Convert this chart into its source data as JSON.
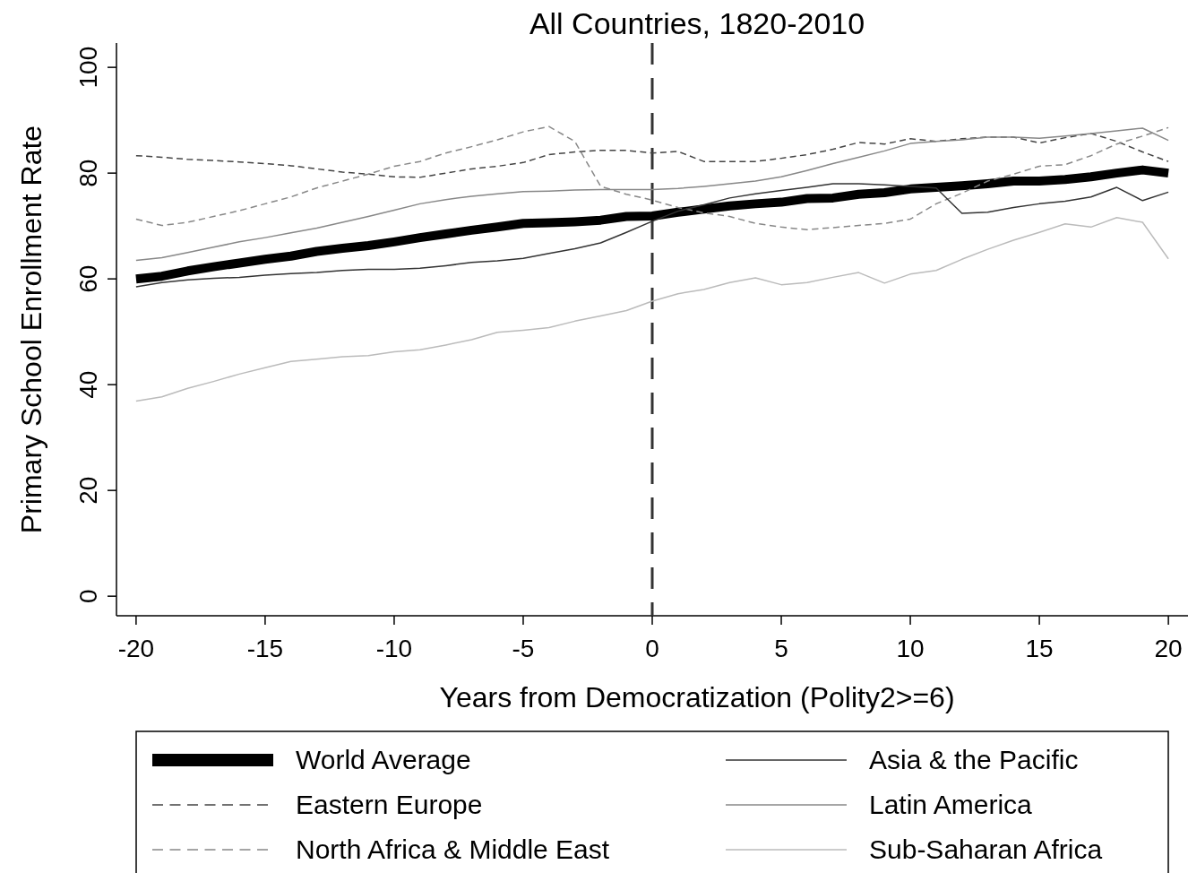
{
  "chart_data": {
    "type": "line",
    "title": "All Countries, 1820-2010",
    "xlabel": "Years from Democratization (Polity2>=6)",
    "ylabel": "Primary School Enrollment Rate",
    "x": [
      -20,
      -19,
      -18,
      -17,
      -16,
      -15,
      -14,
      -13,
      -12,
      -11,
      -10,
      -9,
      -8,
      -7,
      -6,
      -5,
      -4,
      -3,
      -2,
      -1,
      0,
      1,
      2,
      3,
      4,
      5,
      6,
      7,
      8,
      9,
      10,
      11,
      12,
      13,
      14,
      15,
      16,
      17,
      18,
      19,
      20
    ],
    "series": [
      {
        "name": "World Average",
        "color": "#000000",
        "line_style": "solid",
        "values": [
          60,
          60.5,
          61.5,
          62.3,
          63,
          63.7,
          64.3,
          65.2,
          65.8,
          66.3,
          67,
          67.8,
          68.5,
          69.2,
          69.8,
          70.5,
          70.6,
          70.8,
          71.1,
          71.8,
          71.9,
          72.6,
          73.2,
          73.8,
          74.2,
          74.5,
          75.2,
          75.3,
          76,
          76.3,
          77,
          77.3,
          77.6,
          78,
          78.5,
          78.5,
          78.8,
          79.3,
          80,
          80.6,
          80
        ]
      },
      {
        "name": "Eastern Europe",
        "color": "#444444",
        "line_style": "dashed",
        "values": [
          83.3,
          83,
          82.6,
          82.4,
          82.1,
          81.8,
          81.4,
          80.8,
          80.2,
          79.8,
          79.3,
          79.2,
          80,
          80.8,
          81.3,
          82,
          83.5,
          84,
          84.3,
          84.3,
          83.8,
          84.1,
          82.2,
          82.2,
          82.2,
          82.8,
          83.5,
          84.5,
          85.8,
          85.5,
          86.5,
          86,
          86.5,
          86.8,
          86.8,
          85.7,
          86.7,
          87.5,
          86,
          84,
          82.2
        ]
      },
      {
        "name": "North Africa & Middle East",
        "color": "#888888",
        "line_style": "dashed",
        "values": [
          71.3,
          70.1,
          70.7,
          71.8,
          72.9,
          74.2,
          75.5,
          77.2,
          78.5,
          79.8,
          81.3,
          82.2,
          83.8,
          85,
          86.3,
          87.8,
          88.8,
          86,
          77.5,
          76,
          74.9,
          73.5,
          72.5,
          71.8,
          70.5,
          69.8,
          69.3,
          69.7,
          70.1,
          70.5,
          71.3,
          74.2,
          76.2,
          78.5,
          79.8,
          81.3,
          81.6,
          83.3,
          85.5,
          87,
          88.6
        ]
      },
      {
        "name": "Asia & the Pacific",
        "color": "#333333",
        "line_style": "solid",
        "values": [
          58.5,
          59.3,
          59.8,
          60.1,
          60.3,
          60.7,
          61,
          61.2,
          61.6,
          61.8,
          61.8,
          62,
          62.5,
          63.1,
          63.4,
          63.9,
          64.8,
          65.7,
          66.8,
          68.8,
          70.9,
          72.8,
          74,
          75.3,
          76.1,
          76.7,
          77.3,
          78,
          78,
          77.8,
          77.5,
          77.2,
          72.4,
          72.6,
          73.5,
          74.2,
          74.7,
          75.5,
          77.3,
          74.8,
          76.4
        ]
      },
      {
        "name": "Latin America",
        "color": "#888888",
        "line_style": "solid",
        "values": [
          63.5,
          64,
          65,
          66,
          67,
          67.8,
          68.7,
          69.6,
          70.7,
          71.8,
          73,
          74.2,
          75,
          75.6,
          76.1,
          76.5,
          76.6,
          76.8,
          76.9,
          76.9,
          76.9,
          77.1,
          77.5,
          78,
          78.5,
          79.3,
          80.5,
          81.8,
          83,
          84.2,
          85.6,
          86,
          86.3,
          86.8,
          86.8,
          86.6,
          87,
          87.5,
          88,
          88.5,
          86.2
        ]
      },
      {
        "name": "Sub-Saharan Africa",
        "color": "#bbbbbb",
        "line_style": "solid",
        "values": [
          36.9,
          37.7,
          39.3,
          40.6,
          42,
          43.2,
          44.4,
          44.8,
          45.3,
          45.5,
          46.2,
          46.6,
          47.5,
          48.5,
          49.9,
          50.3,
          50.8,
          52,
          53,
          54,
          55.8,
          57.2,
          58,
          59.3,
          60.2,
          58.9,
          59.3,
          60.3,
          61.2,
          59.2,
          60.9,
          61.6,
          63.7,
          65.6,
          67.3,
          68.8,
          70.4,
          69.8,
          71.6,
          70.7,
          63.8
        ]
      }
    ],
    "xlim": [
      -20.76,
      20.76
    ],
    "ylim": [
      -3.7,
      104.6
    ],
    "xticks": [
      -20,
      -15,
      -10,
      -5,
      0,
      5,
      10,
      15,
      20
    ],
    "yticks": [
      0,
      20,
      40,
      60,
      80,
      100
    ],
    "ref_lines": [
      {
        "axis": "x",
        "value": 0,
        "color": "#333333",
        "line_style": "dashed"
      }
    ],
    "grid": false,
    "legend": "bottom"
  }
}
